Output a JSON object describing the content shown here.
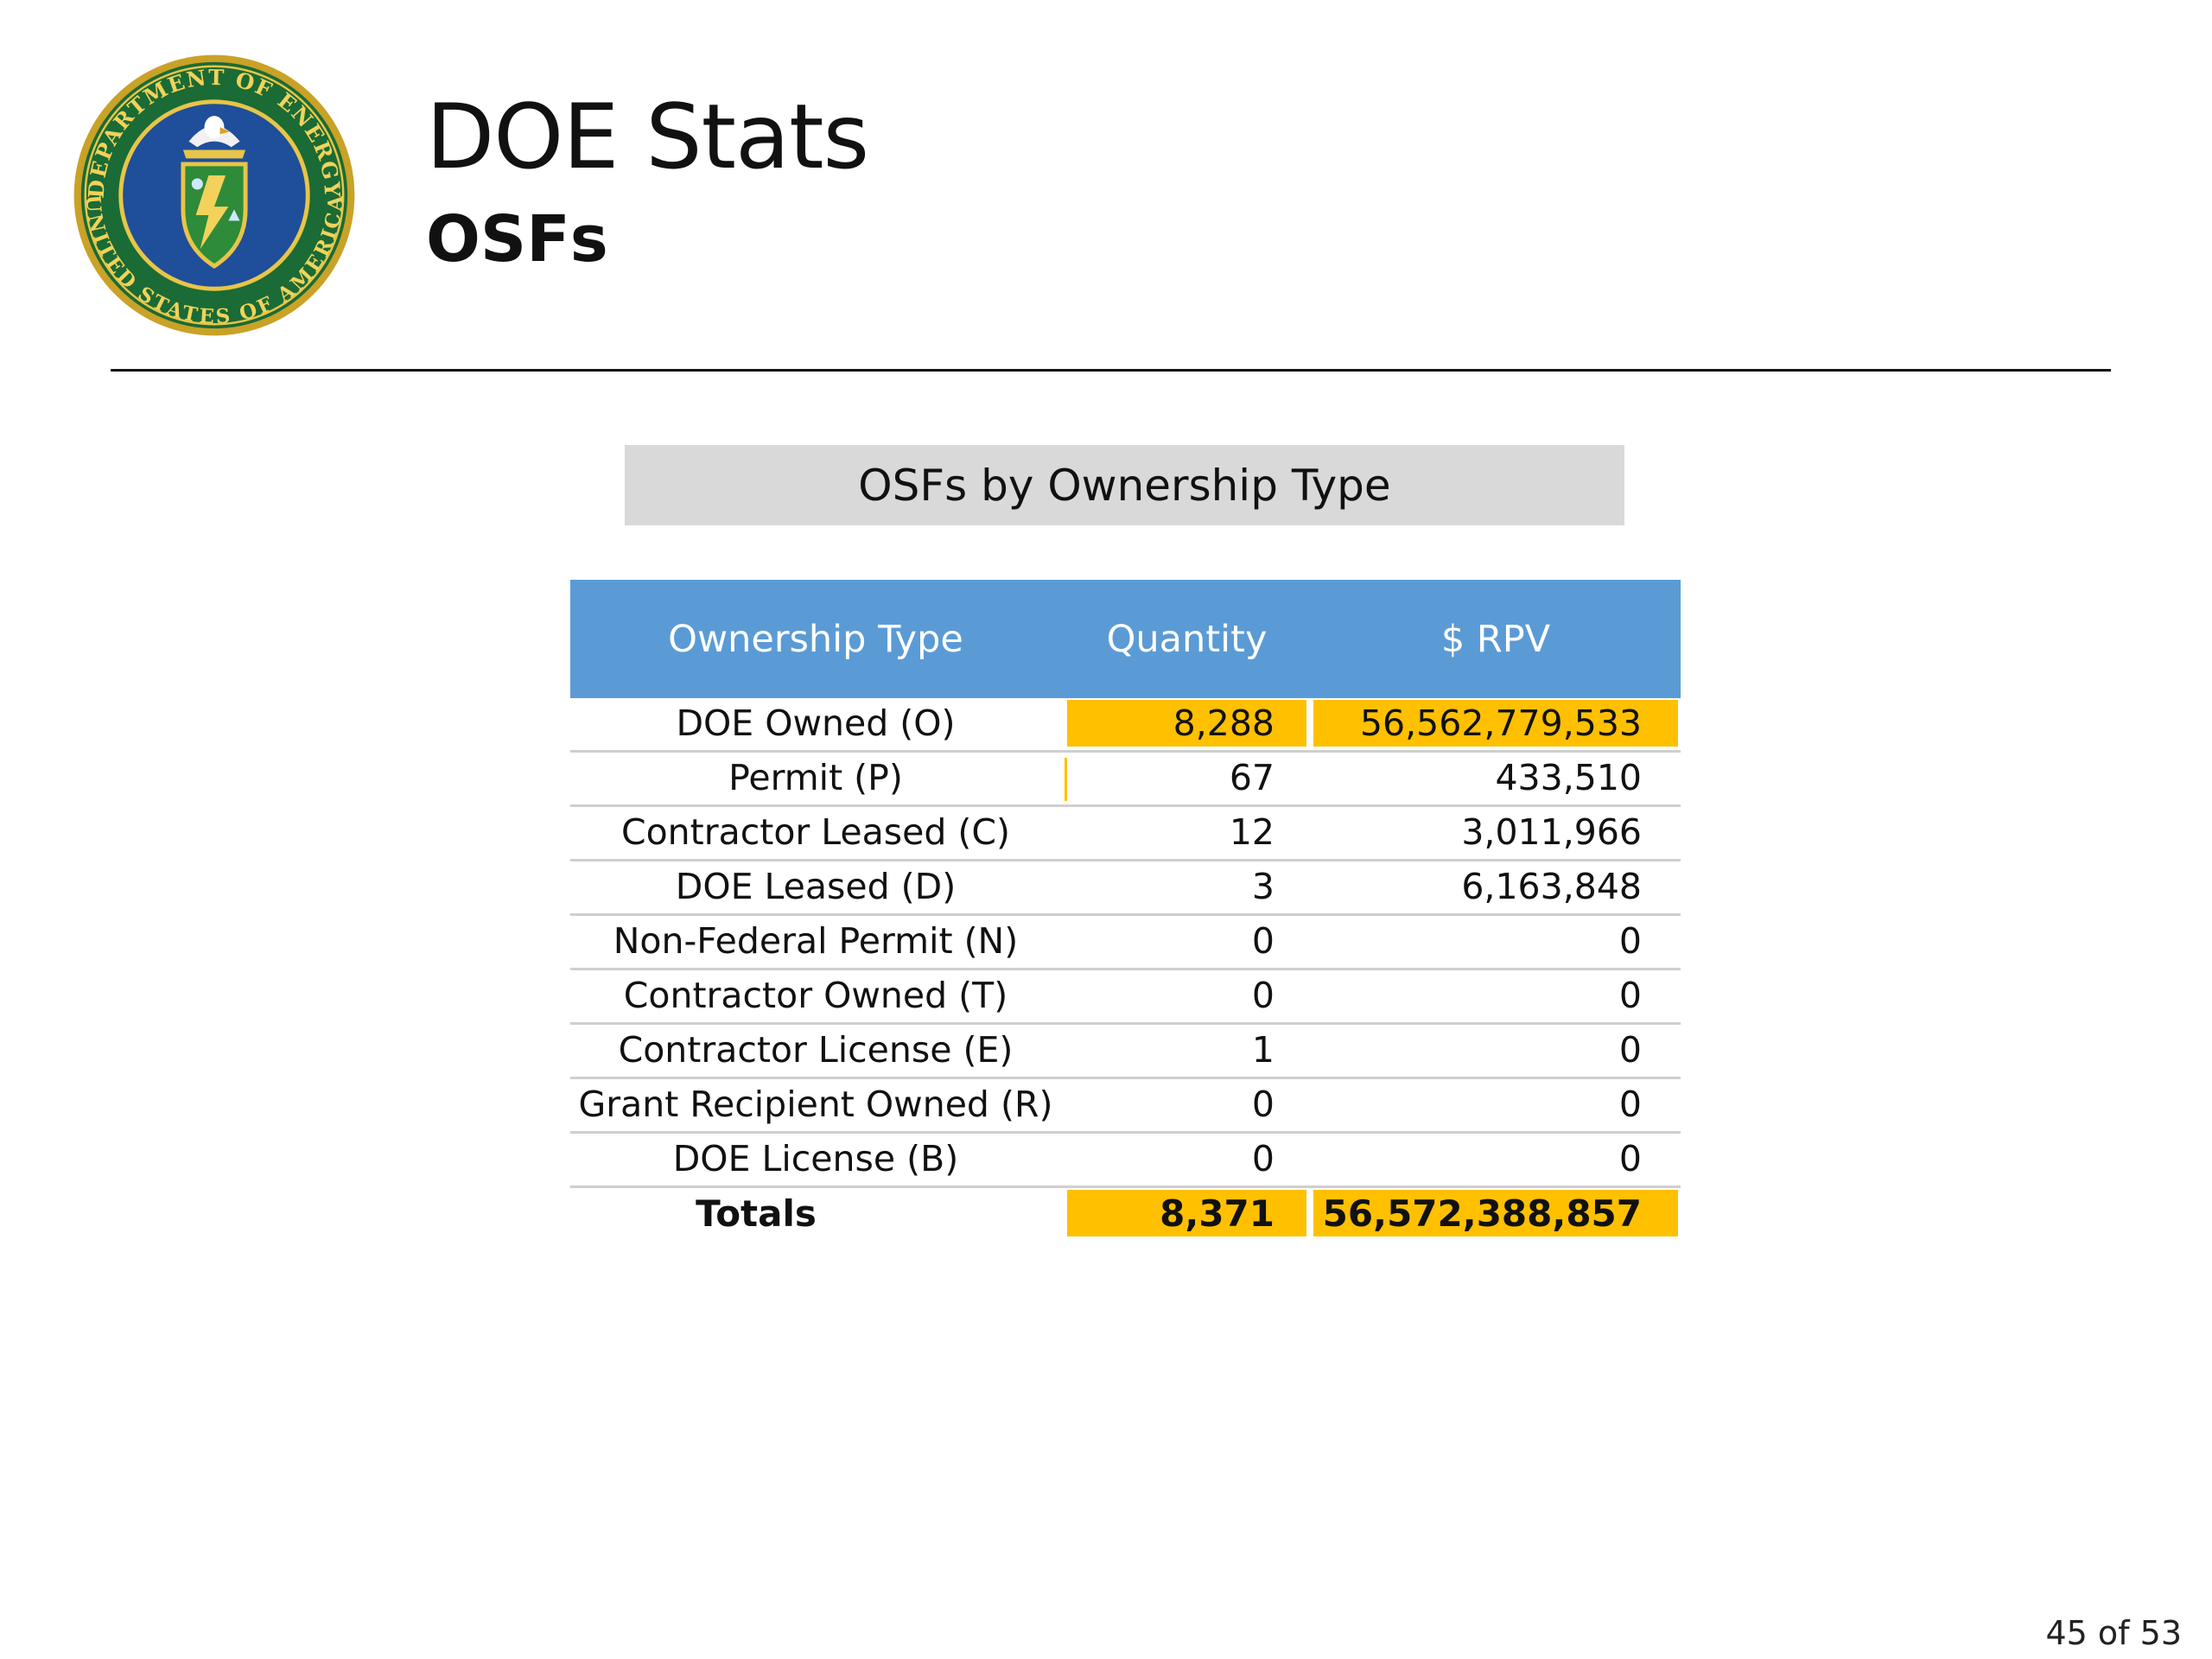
{
  "header": {
    "title": "DOE Stats",
    "subtitle": "OSFs",
    "seal": {
      "icon": "doe-seal-icon",
      "text_top": "DEPARTMENT OF ENERGY",
      "text_bottom": "UNITED STATES OF AMERICA"
    }
  },
  "section": {
    "heading": "OSFs by Ownership Type"
  },
  "table": {
    "columns": [
      "Ownership Type",
      "Quantity",
      "$ RPV"
    ],
    "rows": [
      {
        "type": "DOE Owned (O)",
        "quantity": "8,288",
        "rpv": "56,562,779,533"
      },
      {
        "type": "Permit (P)",
        "quantity": "67",
        "rpv": "433,510"
      },
      {
        "type": "Contractor Leased (C)",
        "quantity": "12",
        "rpv": "3,011,966"
      },
      {
        "type": "DOE Leased (D)",
        "quantity": "3",
        "rpv": "6,163,848"
      },
      {
        "type": "Non-Federal Permit (N)",
        "quantity": "0",
        "rpv": "0"
      },
      {
        "type": "Contractor Owned (T)",
        "quantity": "0",
        "rpv": "0"
      },
      {
        "type": "Contractor License (E)",
        "quantity": "1",
        "rpv": "0"
      },
      {
        "type": "Grant Recipient Owned (R)",
        "quantity": "0",
        "rpv": "0"
      },
      {
        "type": "DOE License (B)",
        "quantity": "0",
        "rpv": "0"
      }
    ],
    "totals": {
      "label": "Totals",
      "quantity": "8,371",
      "rpv": "56,572,388,857"
    }
  },
  "colors": {
    "header_blue": "#5b9bd5",
    "highlight": "#ffc000",
    "heading_gray": "#d9d9d9"
  },
  "footer": {
    "page": "45 of 53"
  }
}
